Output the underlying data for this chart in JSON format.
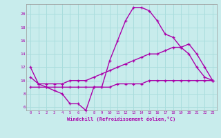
{
  "xlabel": "Windchill (Refroidissement éolien,°C)",
  "xlim": [
    -0.5,
    23.5
  ],
  "ylim": [
    5.5,
    21.5
  ],
  "yticks": [
    6,
    8,
    10,
    12,
    14,
    16,
    18,
    20
  ],
  "xticks": [
    0,
    1,
    2,
    3,
    4,
    5,
    6,
    7,
    8,
    9,
    10,
    11,
    12,
    13,
    14,
    15,
    16,
    17,
    18,
    19,
    20,
    21,
    22,
    23
  ],
  "bg_color": "#c8ecec",
  "line_color": "#aa00aa",
  "grid_color": "#aadddd",
  "line1_x": [
    0,
    1,
    2,
    3,
    4,
    5,
    6,
    7,
    8,
    9,
    10,
    11,
    12,
    13,
    14,
    15,
    16,
    17,
    18,
    19,
    20,
    21,
    22,
    23
  ],
  "line1_y": [
    12.0,
    9.5,
    9.0,
    8.5,
    8.0,
    6.5,
    6.5,
    5.5,
    9.0,
    9.0,
    13.0,
    16.0,
    19.0,
    21.0,
    21.0,
    20.5,
    19.0,
    17.0,
    16.5,
    15.0,
    14.0,
    12.0,
    10.5,
    10.0
  ],
  "line2_x": [
    0,
    1,
    2,
    3,
    4,
    5,
    6,
    7,
    8,
    9,
    10,
    11,
    12,
    13,
    14,
    15,
    16,
    17,
    18,
    19,
    20,
    21,
    22,
    23
  ],
  "line2_y": [
    10.5,
    9.5,
    9.5,
    9.5,
    9.5,
    10.0,
    10.0,
    10.0,
    10.5,
    11.0,
    11.5,
    12.0,
    12.5,
    13.0,
    13.5,
    14.0,
    14.0,
    14.5,
    15.0,
    15.0,
    15.5,
    14.0,
    12.0,
    10.0
  ],
  "line3_x": [
    0,
    1,
    2,
    3,
    4,
    5,
    6,
    7,
    8,
    9,
    10,
    11,
    12,
    13,
    14,
    15,
    16,
    17,
    18,
    19,
    20,
    21,
    22,
    23
  ],
  "line3_y": [
    9.0,
    9.0,
    9.0,
    9.0,
    9.0,
    9.0,
    9.0,
    9.0,
    9.0,
    9.0,
    9.0,
    9.5,
    9.5,
    9.5,
    9.5,
    10.0,
    10.0,
    10.0,
    10.0,
    10.0,
    10.0,
    10.0,
    10.0,
    10.0
  ]
}
